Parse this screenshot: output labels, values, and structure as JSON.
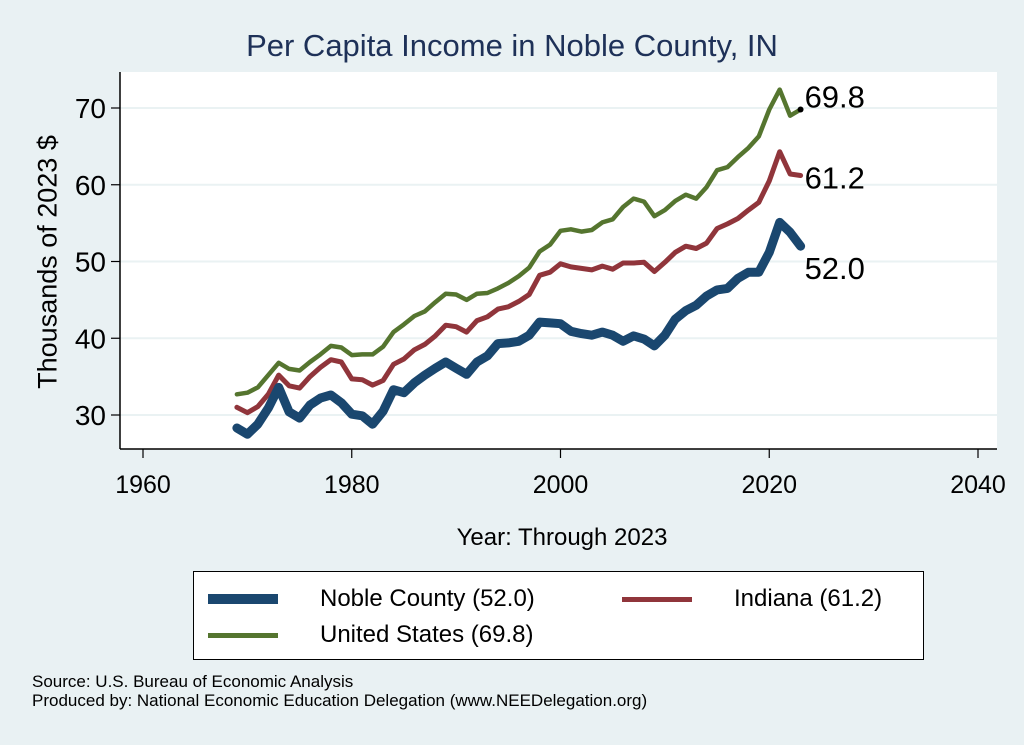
{
  "chart_data": {
    "type": "line",
    "title": "Per Capita Income in Noble County, IN",
    "xlabel": "Year: Through 2023",
    "ylabel": "Thousands of 2023 $",
    "xlim": [
      1958,
      2042
    ],
    "ylim": [
      25.5,
      74.5
    ],
    "xticks": [
      1960,
      1980,
      2000,
      2020,
      2040
    ],
    "yticks": [
      30,
      40,
      50,
      60,
      70
    ],
    "grid": true,
    "legend_position": "bottom",
    "x": [
      1969,
      1970,
      1971,
      1972,
      1973,
      1974,
      1975,
      1976,
      1977,
      1978,
      1979,
      1980,
      1981,
      1982,
      1983,
      1984,
      1985,
      1986,
      1987,
      1988,
      1989,
      1990,
      1991,
      1992,
      1993,
      1994,
      1995,
      1996,
      1997,
      1998,
      1999,
      2000,
      2001,
      2002,
      2003,
      2004,
      2005,
      2006,
      2007,
      2008,
      2009,
      2010,
      2011,
      2012,
      2013,
      2014,
      2015,
      2016,
      2017,
      2018,
      2019,
      2020,
      2021,
      2022,
      2023
    ],
    "series": [
      {
        "name": "Noble County",
        "legend": "Noble County (52.0)",
        "end_label": "52.0",
        "color": "#1a476f",
        "values": [
          28.3,
          27.5,
          28.8,
          30.9,
          33.6,
          30.4,
          29.6,
          31.3,
          32.2,
          32.6,
          31.6,
          30.1,
          29.9,
          28.8,
          30.5,
          33.3,
          32.9,
          34.2,
          35.2,
          36.1,
          36.9,
          36.1,
          35.3,
          36.9,
          37.7,
          39.3,
          39.4,
          39.6,
          40.4,
          42.1,
          42.0,
          41.9,
          40.9,
          40.6,
          40.4,
          40.8,
          40.4,
          39.6,
          40.3,
          39.9,
          39.0,
          40.4,
          42.5,
          43.6,
          44.3,
          45.5,
          46.3,
          46.5,
          47.8,
          48.6,
          48.6,
          51.2,
          55.1,
          53.8,
          52.0
        ]
      },
      {
        "name": "Indiana",
        "legend": "Indiana (61.2)",
        "end_label": "61.2",
        "color": "#90353b",
        "values": [
          31.0,
          30.3,
          31.1,
          32.7,
          35.2,
          33.8,
          33.5,
          35.0,
          36.2,
          37.2,
          36.9,
          34.7,
          34.6,
          33.9,
          34.5,
          36.6,
          37.3,
          38.5,
          39.2,
          40.3,
          41.7,
          41.5,
          40.8,
          42.3,
          42.8,
          43.8,
          44.1,
          44.8,
          45.7,
          48.2,
          48.6,
          49.7,
          49.3,
          49.1,
          48.9,
          49.4,
          49.0,
          49.8,
          49.8,
          49.9,
          48.7,
          49.9,
          51.2,
          52.0,
          51.7,
          52.4,
          54.3,
          54.9,
          55.6,
          56.7,
          57.7,
          60.5,
          64.3,
          61.4,
          61.2
        ]
      },
      {
        "name": "United States",
        "legend": "United States (69.8)",
        "end_label": "69.8",
        "color": "#55752f",
        "values": [
          32.7,
          32.9,
          33.6,
          35.2,
          36.8,
          36.0,
          35.8,
          36.9,
          37.9,
          39.0,
          38.8,
          37.8,
          37.9,
          37.9,
          38.9,
          40.8,
          41.8,
          42.9,
          43.5,
          44.7,
          45.8,
          45.7,
          45.0,
          45.8,
          45.9,
          46.5,
          47.2,
          48.1,
          49.2,
          51.3,
          52.2,
          54.0,
          54.2,
          53.9,
          54.1,
          55.1,
          55.5,
          57.1,
          58.2,
          57.8,
          55.9,
          56.7,
          57.9,
          58.7,
          58.2,
          59.7,
          61.9,
          62.3,
          63.6,
          64.8,
          66.3,
          69.8,
          72.4,
          69.0,
          69.8
        ]
      }
    ]
  },
  "footer": {
    "source": "Source: U.S. Bureau of Economic Analysis",
    "produced_by": "Produced by: National Economic Education Delegation (www.NEEDelegation.org)"
  },
  "colors": {
    "background": "#e9f1f3",
    "plot_background": "#ffffff",
    "grid": "#eaf2f3",
    "title": "#1e3158"
  }
}
